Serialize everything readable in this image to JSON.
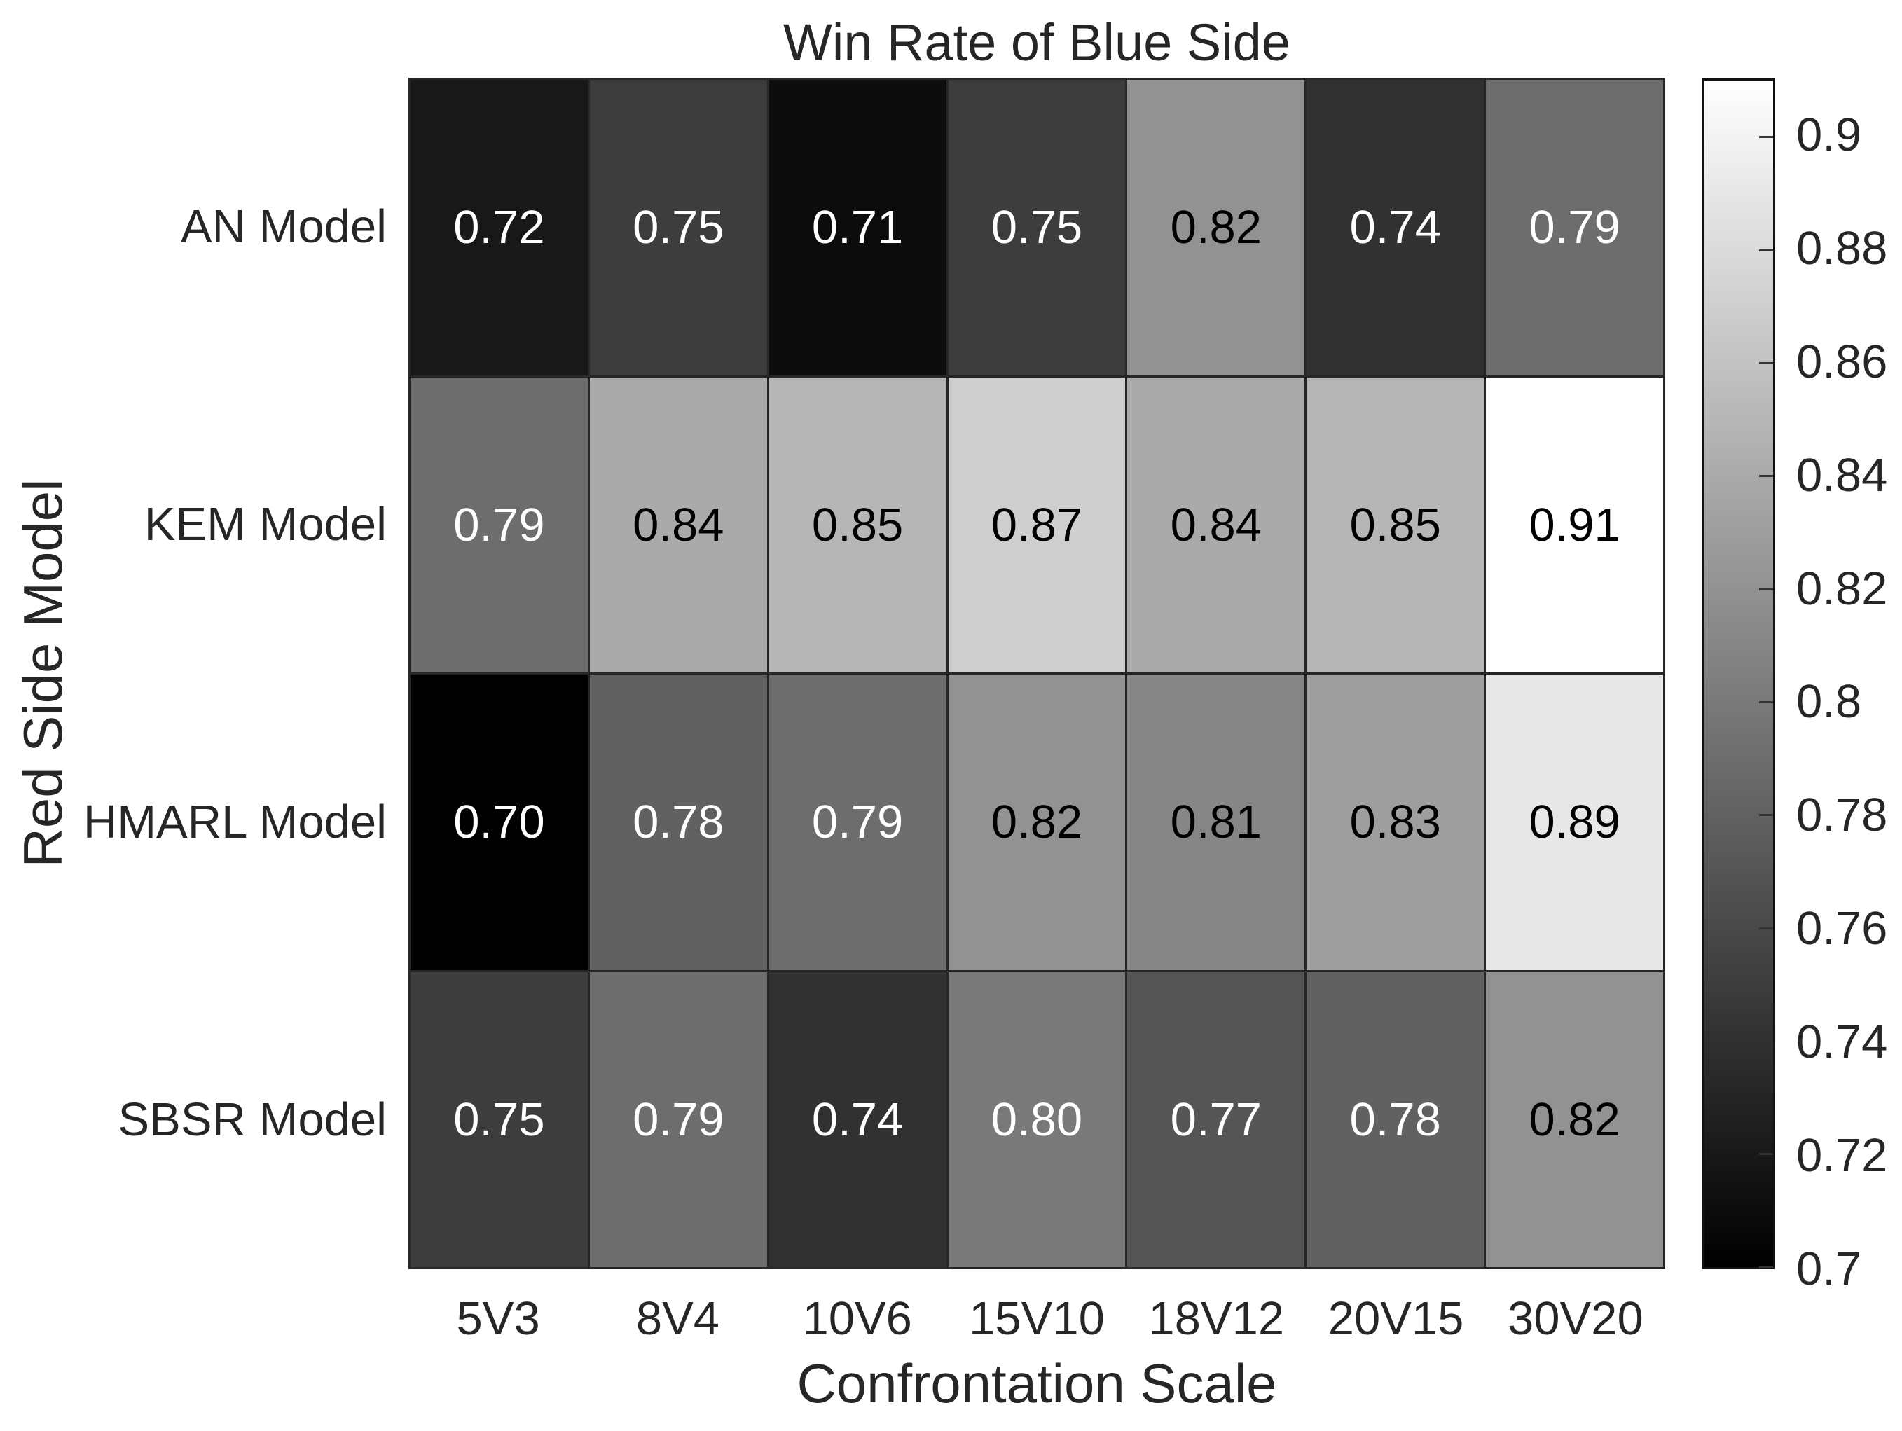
{
  "chart_data": {
    "type": "heatmap",
    "title": "Win Rate of Blue Side",
    "xlabel": "Confrontation Scale",
    "ylabel": "Red Side Model",
    "x_categories": [
      "5V3",
      "8V4",
      "10V6",
      "15V10",
      "18V12",
      "20V15",
      "30V20"
    ],
    "y_categories": [
      "AN Model",
      "KEM Model",
      "HMARL Model",
      "SBSR Model"
    ],
    "series": [
      {
        "name": "AN Model",
        "values": [
          0.72,
          0.75,
          0.71,
          0.75,
          0.82,
          0.74,
          0.79
        ]
      },
      {
        "name": "KEM Model",
        "values": [
          0.79,
          0.84,
          0.85,
          0.87,
          0.84,
          0.85,
          0.91
        ]
      },
      {
        "name": "HMARL Model",
        "values": [
          0.7,
          0.78,
          0.79,
          0.82,
          0.81,
          0.83,
          0.89
        ]
      },
      {
        "name": "SBSR Model",
        "values": [
          0.75,
          0.79,
          0.74,
          0.8,
          0.77,
          0.78,
          0.82
        ]
      }
    ],
    "value_format": "0.00",
    "colormap": "gray",
    "color_range": [
      0.7,
      0.91
    ],
    "colorbar_ticks": [
      0.7,
      0.72,
      0.74,
      0.76,
      0.78,
      0.8,
      0.82,
      0.84,
      0.86,
      0.88,
      0.9
    ],
    "colorbar_position": "right",
    "grid": true,
    "colors": {
      "grid_line": "#262626",
      "axis_text": "#262626",
      "cell_text_on_dark": "#ffffff",
      "cell_text_on_light": "#000000",
      "colorbar_low": "#000000",
      "colorbar_high": "#ffffff"
    }
  }
}
